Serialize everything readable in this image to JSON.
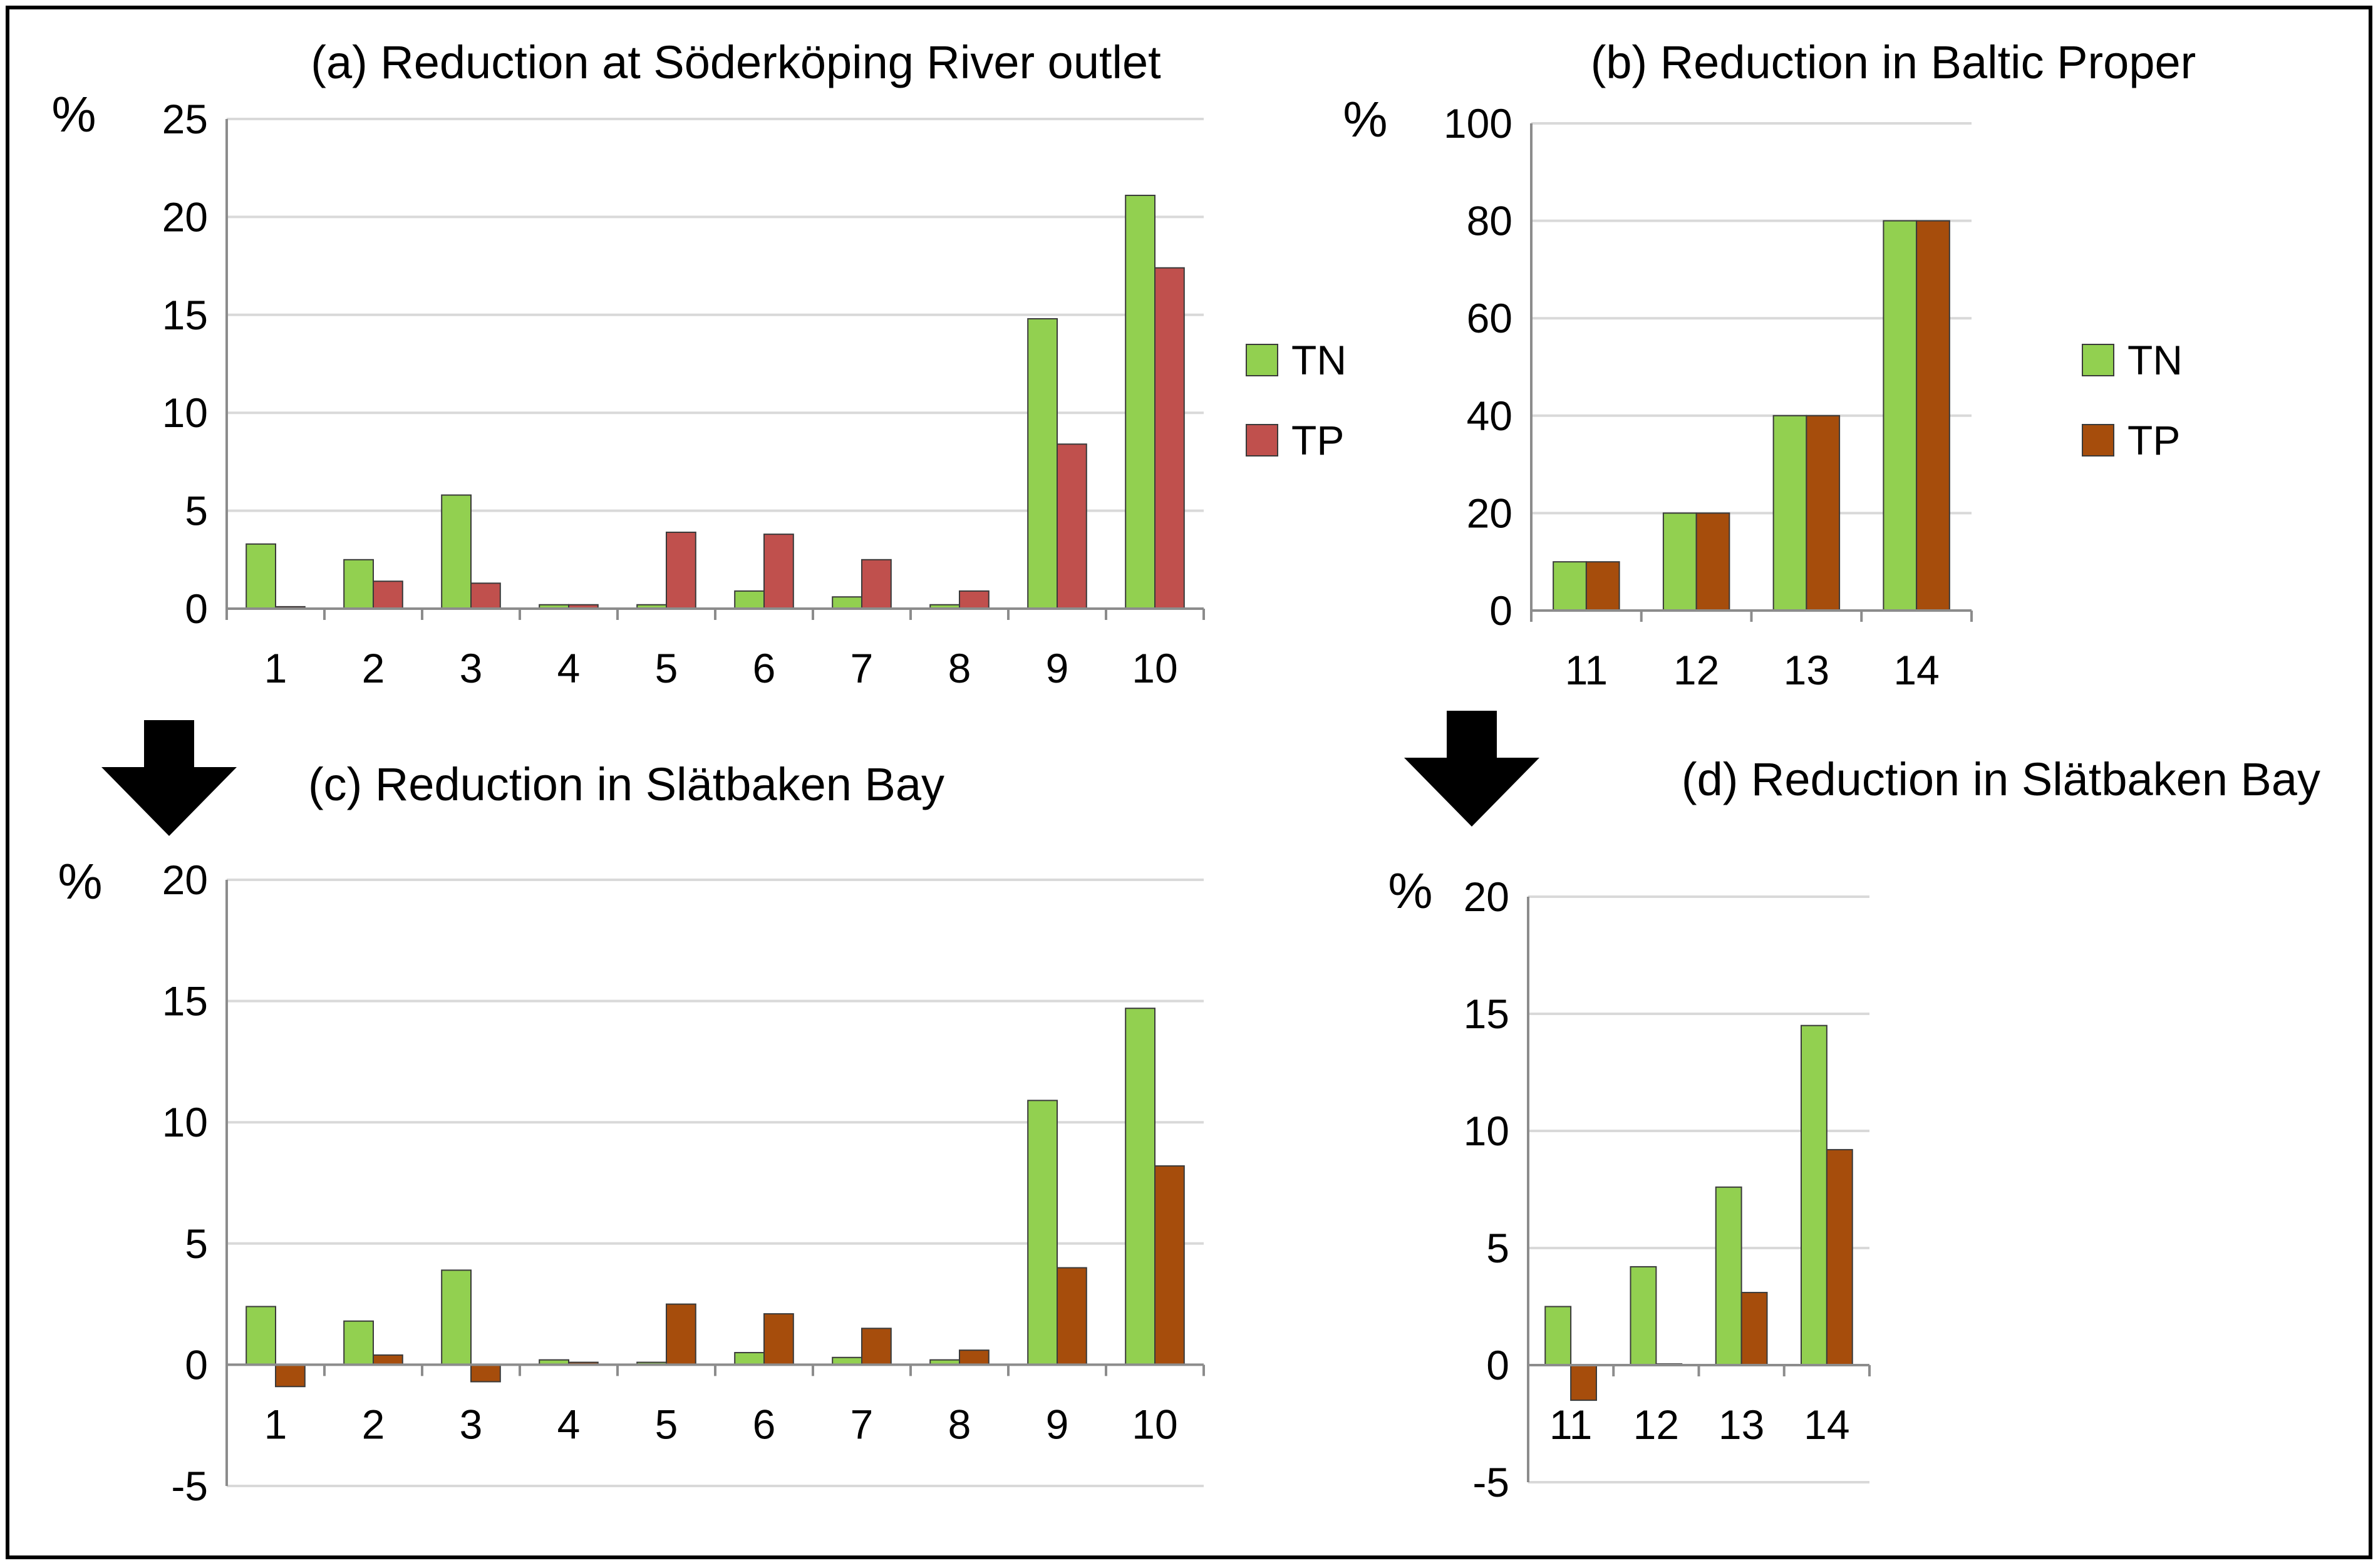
{
  "colors": {
    "tn": "#92d050",
    "tp_a": "#c0504d",
    "tp": "#a64d0c",
    "grid": "#d9d9d9",
    "axis": "#8c8c8c"
  },
  "chart_data": [
    {
      "id": "a",
      "type": "bar",
      "title": "(a) Reduction at Söderköping River outlet",
      "ylabel": "%",
      "ylim": [
        0,
        25
      ],
      "yticks": [
        0,
        5,
        10,
        15,
        20,
        25
      ],
      "grid": true,
      "legend_position": "right",
      "categories": [
        "1",
        "2",
        "3",
        "4",
        "5",
        "6",
        "7",
        "8",
        "9",
        "10"
      ],
      "series": [
        {
          "name": "TN",
          "values": [
            3.3,
            2.5,
            5.8,
            0.2,
            0.2,
            0.9,
            0.6,
            0.2,
            14.8,
            21.1
          ]
        },
        {
          "name": "TP",
          "values": [
            0.1,
            1.4,
            1.3,
            0.2,
            3.9,
            3.8,
            2.5,
            0.9,
            8.4,
            17.4
          ]
        }
      ]
    },
    {
      "id": "b",
      "type": "bar",
      "title": "(b) Reduction in Baltic Proper",
      "ylabel": "%",
      "ylim": [
        0,
        100
      ],
      "yticks": [
        0,
        20,
        40,
        60,
        80,
        100
      ],
      "grid": true,
      "legend_position": "right",
      "categories": [
        "11",
        "12",
        "13",
        "14"
      ],
      "series": [
        {
          "name": "TN",
          "values": [
            10,
            20,
            40,
            80
          ]
        },
        {
          "name": "TP",
          "values": [
            10,
            20,
            40,
            80
          ]
        }
      ]
    },
    {
      "id": "c",
      "type": "bar",
      "title": "(c) Reduction in Slätbaken Bay",
      "ylabel": "%",
      "ylim": [
        -5,
        20
      ],
      "yticks": [
        -5,
        0,
        5,
        10,
        15,
        20
      ],
      "grid": true,
      "legend_position": "none",
      "categories": [
        "1",
        "2",
        "3",
        "4",
        "5",
        "6",
        "7",
        "8",
        "9",
        "10"
      ],
      "series": [
        {
          "values": [
            2.4,
            1.8,
            3.9,
            0.2,
            0.1,
            0.5,
            0.3,
            0.2,
            10.9,
            14.7
          ]
        },
        {
          "values": [
            -0.9,
            0.4,
            -0.7,
            0.1,
            2.5,
            2.1,
            1.5,
            0.6,
            4.0,
            8.2
          ]
        }
      ]
    },
    {
      "id": "d",
      "type": "bar",
      "title": "(d) Reduction in Slätbaken Bay",
      "ylabel": "%",
      "ylim": [
        -5,
        20
      ],
      "yticks": [
        -5,
        0,
        5,
        10,
        15,
        20
      ],
      "grid": true,
      "legend_position": "none",
      "categories": [
        "11",
        "12",
        "13",
        "14"
      ],
      "series": [
        {
          "values": [
            2.5,
            4.2,
            7.6,
            14.5
          ]
        },
        {
          "values": [
            -1.5,
            0.05,
            3.1,
            9.2
          ]
        }
      ]
    }
  ],
  "arrows": [
    {
      "id": "arrow-a-to-c",
      "direction": "down"
    },
    {
      "id": "arrow-b-to-d",
      "direction": "down"
    }
  ]
}
